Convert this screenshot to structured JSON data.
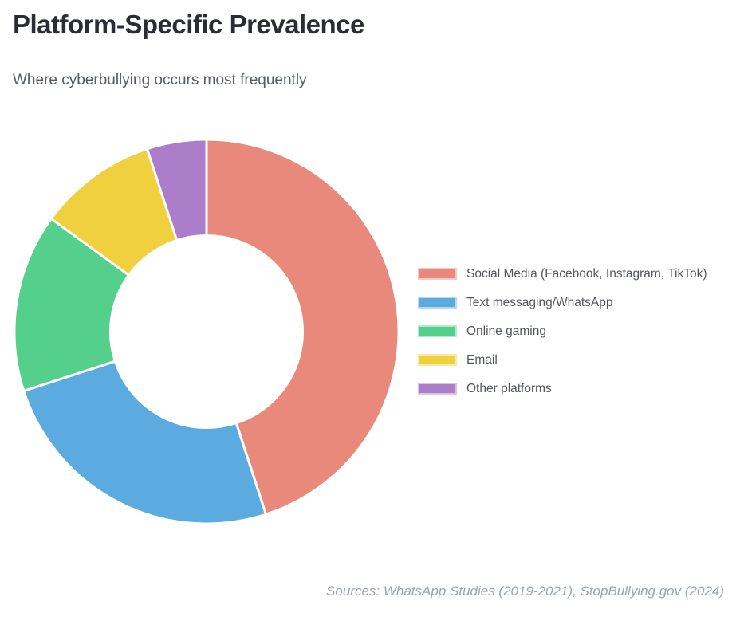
{
  "header": {
    "title": "Platform-Specific Prevalence",
    "subtitle": "Where cyberbullying occurs most frequently"
  },
  "footer": {
    "source_note": "Sources: WhatsApp Studies (2019-2021), StopBullying.gov (2024)"
  },
  "chart_data": {
    "type": "pie",
    "variant": "donut",
    "title": "Platform-Specific Prevalence",
    "subtitle": "Where cyberbullying occurs most frequently",
    "categories": [
      "Social Media (Facebook, Instagram, TikTok)",
      "Text messaging/WhatsApp",
      "Online gaming",
      "Email",
      "Other platforms"
    ],
    "values": [
      45,
      25,
      15,
      10,
      5
    ],
    "unit": "percent",
    "colors": [
      "#E8897B",
      "#5BAAE0",
      "#55D08C",
      "#F0D03E",
      "#AC7DC8"
    ],
    "slice_border_color": "#FFFFFF",
    "inner_radius_ratio": 0.5,
    "start_angle_deg": 0,
    "direction": "clockwise",
    "legend_position": "right",
    "data_labels_shown": false,
    "source_note": "Sources: WhatsApp Studies (2019-2021), StopBullying.gov (2024)"
  }
}
